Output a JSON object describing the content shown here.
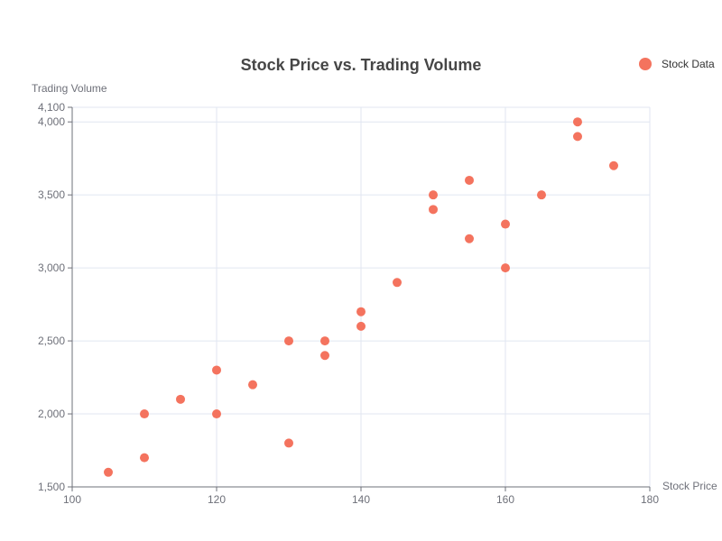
{
  "chart_data": {
    "type": "scatter",
    "title": "Stock Price vs. Trading Volume",
    "xlabel": "Stock Price",
    "ylabel": "Trading Volume",
    "xlim": [
      100,
      180
    ],
    "ylim": [
      1500,
      4100
    ],
    "x_ticks": [
      100,
      120,
      140,
      160,
      180
    ],
    "y_ticks": [
      1500,
      2000,
      2500,
      3000,
      3500,
      4000,
      4100
    ],
    "x_tick_labels": [
      "100",
      "120",
      "140",
      "160",
      "180"
    ],
    "y_tick_labels": [
      "1,500",
      "2,000",
      "2,500",
      "3,000",
      "3,500",
      "4,000",
      "4,100"
    ],
    "grid": true,
    "legend_position": "top-right",
    "series": [
      {
        "name": "Stock Data",
        "color": "#f4735e",
        "points": [
          {
            "x": 105,
            "y": 1600
          },
          {
            "x": 110,
            "y": 2000
          },
          {
            "x": 110,
            "y": 1700
          },
          {
            "x": 115,
            "y": 2100
          },
          {
            "x": 120,
            "y": 2300
          },
          {
            "x": 120,
            "y": 2000
          },
          {
            "x": 125,
            "y": 2200
          },
          {
            "x": 130,
            "y": 2500
          },
          {
            "x": 130,
            "y": 1800
          },
          {
            "x": 135,
            "y": 2500
          },
          {
            "x": 135,
            "y": 2400
          },
          {
            "x": 140,
            "y": 2700
          },
          {
            "x": 140,
            "y": 2600
          },
          {
            "x": 145,
            "y": 2900
          },
          {
            "x": 150,
            "y": 3500
          },
          {
            "x": 150,
            "y": 3400
          },
          {
            "x": 155,
            "y": 3600
          },
          {
            "x": 155,
            "y": 3200
          },
          {
            "x": 160,
            "y": 3300
          },
          {
            "x": 160,
            "y": 3000
          },
          {
            "x": 165,
            "y": 3500
          },
          {
            "x": 170,
            "y": 4000
          },
          {
            "x": 170,
            "y": 3900
          },
          {
            "x": 175,
            "y": 3700
          }
        ]
      }
    ]
  }
}
